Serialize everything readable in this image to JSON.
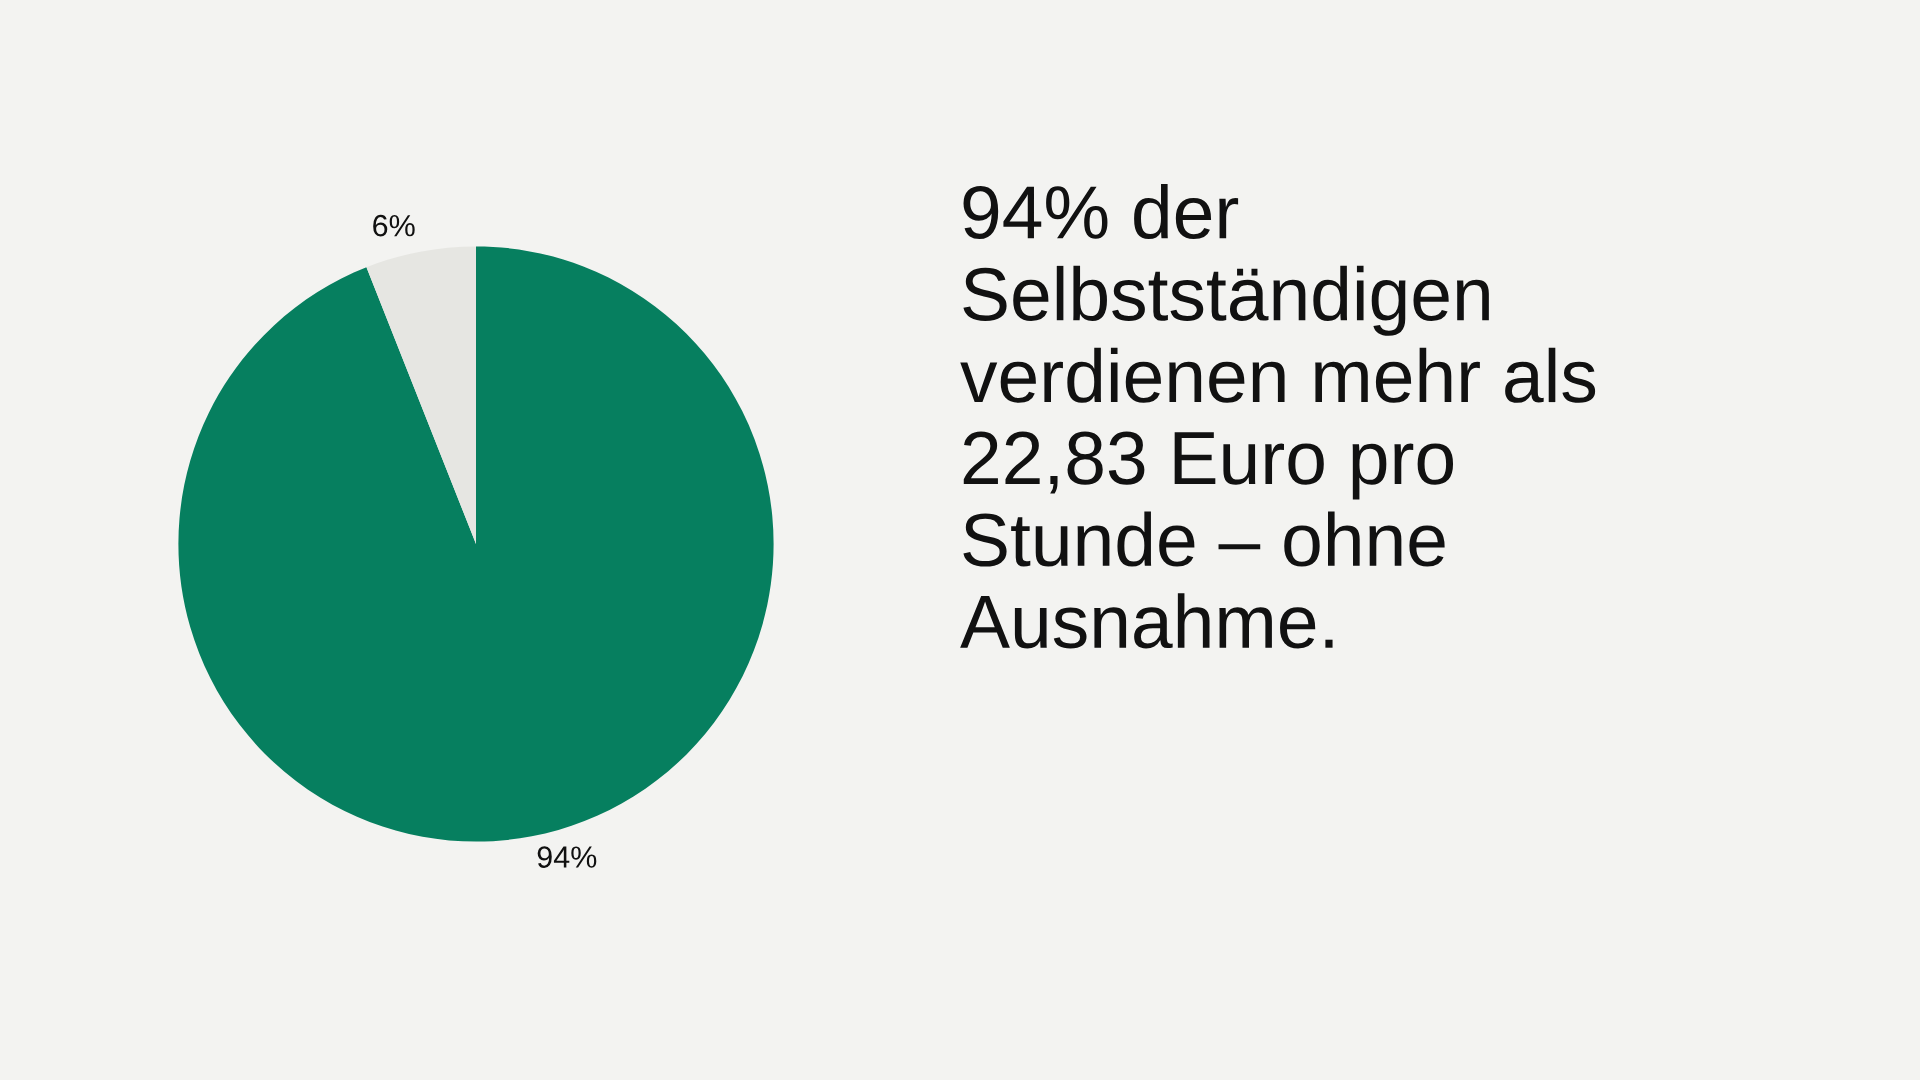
{
  "chart_data": {
    "type": "pie",
    "title": "94% der\nSelbstständigen\nverdienen mehr als\n22,83 Euro pro\nStunde – ohne\nAusnahme.",
    "categories": [
      null,
      null
    ],
    "values": [
      94,
      6
    ],
    "colors": [
      "#067f5f",
      "#e6e6e2"
    ],
    "value_labels": [
      "94%",
      "6%"
    ]
  }
}
